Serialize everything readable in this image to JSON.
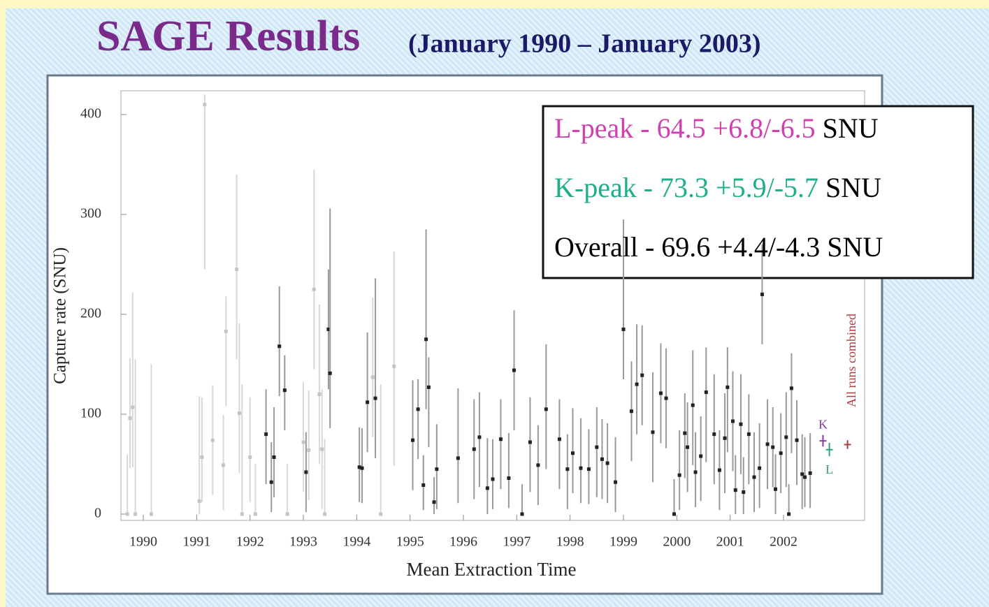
{
  "chart_data": {
    "type": "scatter",
    "title": "SAGE Results",
    "subtitle": "(January 1990 – January 2003)",
    "xlabel": "Mean Extraction Time",
    "ylabel": "Capture rate (SNU)",
    "xlim": [
      1989.58,
      2003.52
    ],
    "xticks": [
      1990,
      1991,
      1992,
      1993,
      1994,
      1995,
      1996,
      1997,
      1998,
      1999,
      2000,
      2001,
      2002
    ],
    "ylim": [
      0,
      400
    ],
    "yticks": [
      0,
      100,
      200,
      300,
      400
    ],
    "series": [
      {
        "color": "#c4c4c4",
        "x": [
          1989.7,
          1989.75,
          1989.8,
          1989.85,
          1990.15,
          1991.05,
          1991.1,
          1991.15,
          1991.3,
          1991.5,
          1991.55,
          1991.75,
          1991.8,
          1991.85,
          1992.0,
          1992.1,
          1992.7,
          1993.0,
          1993.1,
          1993.2,
          1993.3,
          1993.35,
          1993.4,
          1994.3,
          1994.45,
          1994.7
        ],
        "values": [
          0,
          96,
          107,
          0,
          0,
          13,
          57,
          410,
          74,
          49,
          183,
          245,
          101,
          0,
          57,
          0,
          0,
          72,
          64,
          225,
          120,
          65,
          0,
          137,
          0,
          148
        ],
        "err_minus": [
          0,
          50,
          60,
          0,
          0,
          13,
          45,
          165,
          55,
          45,
          75,
          90,
          60,
          0,
          45,
          0,
          0,
          50,
          50,
          80,
          70,
          60,
          0,
          60,
          0,
          100
        ],
        "err_plus": [
          60,
          60,
          115,
          155,
          150,
          105,
          60,
          10,
          55,
          50,
          35,
          95,
          90,
          130,
          60,
          50,
          50,
          60,
          60,
          120,
          90,
          60,
          75,
          80,
          130,
          115
        ]
      },
      {
        "color": "#222222",
        "x": [
          1992.3,
          1992.4,
          1992.45,
          1992.55,
          1992.65,
          1993.05,
          1993.47,
          1993.5,
          1994.05,
          1994.1,
          1994.2,
          1994.35,
          1995.05,
          1995.15,
          1995.25,
          1995.3,
          1995.35,
          1995.45,
          1995.5,
          1995.9,
          1996.2,
          1996.3,
          1996.45,
          1996.55,
          1996.7,
          1996.85,
          1996.95,
          1997.1,
          1997.25,
          1997.4,
          1997.55,
          1997.8,
          1997.95,
          1998.05,
          1998.2,
          1998.35,
          1998.5,
          1998.6,
          1998.7,
          1998.85,
          1999.0,
          1999.15,
          1999.25,
          1999.35,
          1999.55,
          1999.7,
          1999.8,
          1999.95,
          2000.05,
          2000.15,
          2000.2,
          2000.3,
          2000.35,
          2000.45,
          2000.55,
          2000.7,
          2000.8,
          2000.9,
          2000.95,
          2001.05,
          2001.1,
          2001.2,
          2001.25,
          2001.35,
          2001.45,
          2001.55,
          2001.6,
          2001.7,
          2001.8,
          2001.85,
          2001.95,
          2002.05,
          2002.1,
          2002.15,
          2002.25,
          2002.35,
          2002.4,
          2002.5
        ],
        "values": [
          80,
          32,
          57,
          168,
          124,
          42,
          185,
          141,
          47,
          46,
          112,
          116,
          74,
          105,
          29,
          175,
          127,
          12,
          45,
          56,
          65,
          77,
          26,
          35,
          75,
          36,
          144,
          0,
          72,
          49,
          105,
          75,
          45,
          61,
          46,
          45,
          67,
          55,
          51,
          32,
          185,
          103,
          130,
          139,
          82,
          121,
          116,
          0,
          39,
          81,
          67,
          109,
          42,
          58,
          122,
          80,
          44,
          76,
          127,
          93,
          24,
          90,
          22,
          80,
          37,
          46,
          220,
          70,
          67,
          25,
          61,
          77,
          0,
          126,
          74,
          40,
          37,
          41
        ],
        "err_minus": [
          50,
          30,
          40,
          50,
          40,
          40,
          60,
          55,
          35,
          35,
          50,
          60,
          50,
          50,
          25,
          70,
          60,
          12,
          40,
          45,
          50,
          50,
          26,
          30,
          50,
          30,
          60,
          0,
          50,
          40,
          60,
          50,
          40,
          40,
          35,
          35,
          50,
          40,
          40,
          30,
          50,
          50,
          50,
          50,
          50,
          50,
          50,
          0,
          35,
          45,
          45,
          60,
          35,
          45,
          70,
          50,
          40,
          55,
          65,
          50,
          24,
          50,
          22,
          50,
          35,
          40,
          50,
          45,
          40,
          25,
          40,
          50,
          0,
          65,
          45,
          35,
          30,
          35
        ],
        "err_plus": [
          45,
          40,
          50,
          60,
          35,
          40,
          60,
          165,
          40,
          40,
          70,
          120,
          60,
          30,
          30,
          110,
          30,
          25,
          45,
          70,
          50,
          45,
          50,
          40,
          40,
          45,
          60,
          30,
          45,
          40,
          65,
          40,
          35,
          45,
          50,
          40,
          40,
          40,
          40,
          45,
          110,
          50,
          60,
          50,
          60,
          50,
          50,
          35,
          45,
          40,
          45,
          55,
          40,
          40,
          45,
          60,
          40,
          45,
          40,
          50,
          35,
          50,
          35,
          40,
          45,
          45,
          50,
          45,
          40,
          35,
          40,
          45,
          30,
          35,
          40,
          40,
          40,
          40
        ]
      }
    ],
    "combined": {
      "caption": "All runs combined",
      "labels": [
        "K",
        "L",
        null
      ],
      "x": [
        2002.74,
        2002.86,
        2003.2
      ],
      "values": [
        73.3,
        64.5,
        69.6
      ],
      "err_minus": [
        5.7,
        6.5,
        4.3
      ],
      "err_plus": [
        5.9,
        6.8,
        4.4
      ],
      "colors": [
        "#8a3aa0",
        "#2aa87a",
        "#b03a3a"
      ]
    },
    "legend": [
      {
        "text": "L-peak - 64.5 +6.8/-6.5",
        "unit": "SNU",
        "color": "#d040b0"
      },
      {
        "text": "K-peak - 73.3 +5.9/-5.7",
        "unit": "SNU",
        "color": "#1fae8a"
      },
      {
        "text": "Overall - 69.6 +4.4/-4.3 SNU",
        "unit": null,
        "color": "#000000"
      }
    ]
  }
}
